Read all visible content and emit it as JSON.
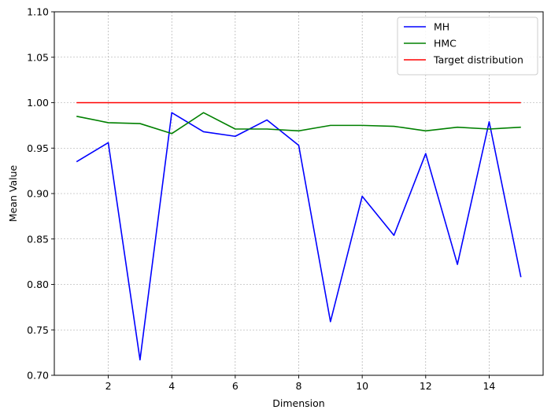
{
  "chart_data": {
    "type": "line",
    "xlabel": "Dimension",
    "ylabel": "Mean Value",
    "xlim": [
      0.3,
      15.7
    ],
    "ylim": [
      0.7,
      1.1
    ],
    "xticks": [
      2,
      4,
      6,
      8,
      10,
      12,
      14
    ],
    "xtick_labels": [
      "2",
      "4",
      "6",
      "8",
      "10",
      "12",
      "14"
    ],
    "yticks": [
      0.7,
      0.75,
      0.8,
      0.85,
      0.9,
      0.95,
      1.0,
      1.05,
      1.1
    ],
    "ytick_labels": [
      "0.70",
      "0.75",
      "0.80",
      "0.85",
      "0.90",
      "0.95",
      "1.00",
      "1.05",
      "1.10"
    ],
    "grid": true,
    "legend_position": "top-right",
    "x": [
      1,
      2,
      3,
      4,
      5,
      6,
      7,
      8,
      9,
      10,
      11,
      12,
      13,
      14,
      15
    ],
    "series": [
      {
        "name": "MH",
        "color": "#0000ff",
        "values": [
          0.935,
          0.956,
          0.717,
          0.989,
          0.968,
          0.963,
          0.981,
          0.953,
          0.759,
          0.897,
          0.854,
          0.944,
          0.822,
          0.979,
          0.808
        ]
      },
      {
        "name": "HMC",
        "color": "#008000",
        "values": [
          0.985,
          0.978,
          0.977,
          0.966,
          0.989,
          0.971,
          0.971,
          0.969,
          0.975,
          0.975,
          0.974,
          0.969,
          0.973,
          0.971,
          0.973
        ]
      },
      {
        "name": "Target distribution",
        "color": "#ff0000",
        "values": [
          1.0,
          1.0,
          1.0,
          1.0,
          1.0,
          1.0,
          1.0,
          1.0,
          1.0,
          1.0,
          1.0,
          1.0,
          1.0,
          1.0,
          1.0
        ]
      }
    ]
  }
}
